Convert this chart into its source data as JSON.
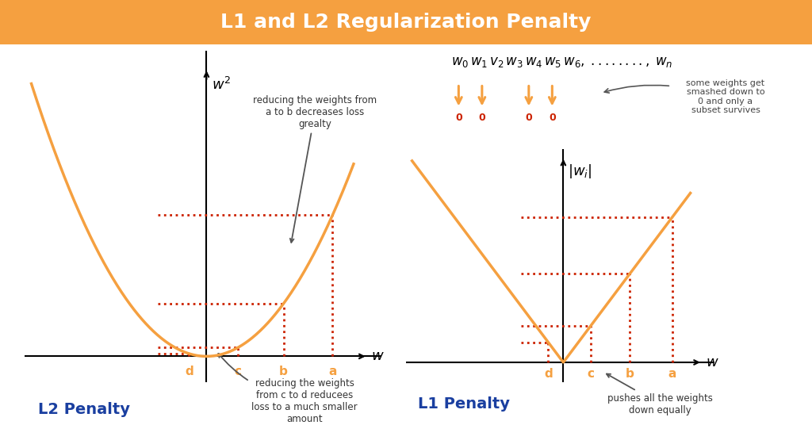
{
  "title": "L1 and L2 Regularization Penalty",
  "title_bg_color": "#F5A040",
  "title_color": "white",
  "title_fontsize": 18,
  "bg_color": "white",
  "orange_color": "#F5A040",
  "red_color": "#CC2200",
  "blue_color": "#1a3fa0",
  "dark_gray": "#555555",
  "l2_label": "L2 Penalty",
  "l1_label": "L1 Penalty",
  "annotation1": "reducing the weights from\na to b decreases loss\ngrealty",
  "annotation2": "reducing the weights\nfrom c to d reducees\nloss to a much smaller\namount",
  "annotation3": "some weights get\nsmashed down to\n0 and only a\nsubset survives",
  "annotation4": "pushes all the weights\ndown equally",
  "l2_ylabel": "$w^2$",
  "l1_ylabel": "$|w_i|$",
  "xlabel": "$w$",
  "wa": 1.8,
  "wb": 1.1,
  "wc": 0.45,
  "wd": -0.25
}
